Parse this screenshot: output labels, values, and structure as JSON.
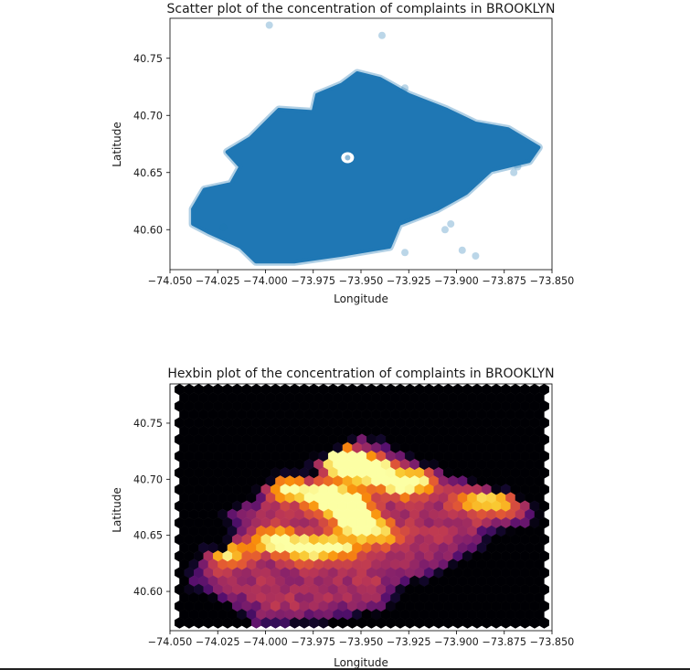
{
  "chart_data": [
    {
      "type": "scatter",
      "title": "Scatter plot of the concentration of complaints in BROOKLYN",
      "xlabel": "Longitude",
      "ylabel": "Latitude",
      "xlim": [
        -74.05,
        -73.85
      ],
      "ylim": [
        40.565,
        40.785
      ],
      "xticks": [
        -74.05,
        -74.025,
        -74.0,
        -73.975,
        -73.95,
        -73.925,
        -73.9,
        -73.875,
        -73.85
      ],
      "xtick_labels": [
        "−74.050",
        "−74.025",
        "−74.000",
        "−73.975",
        "−73.950",
        "−73.925",
        "−73.900",
        "−73.875",
        "−73.850"
      ],
      "yticks": [
        40.6,
        40.65,
        40.7,
        40.75
      ],
      "ytick_labels": [
        "40.60",
        "40.65",
        "40.70",
        "40.75"
      ],
      "grid": false,
      "point_color": "#1f77b4",
      "region": [
        [
          -74.038,
          40.618
        ],
        [
          -74.032,
          40.635
        ],
        [
          -74.018,
          40.64
        ],
        [
          -74.013,
          40.655
        ],
        [
          -74.02,
          40.668
        ],
        [
          -74.008,
          40.68
        ],
        [
          -73.993,
          40.705
        ],
        [
          -73.975,
          40.703
        ],
        [
          -73.973,
          40.718
        ],
        [
          -73.96,
          40.727
        ],
        [
          -73.952,
          40.737
        ],
        [
          -73.94,
          40.732
        ],
        [
          -73.925,
          40.718
        ],
        [
          -73.905,
          40.705
        ],
        [
          -73.89,
          40.693
        ],
        [
          -73.873,
          40.688
        ],
        [
          -73.857,
          40.672
        ],
        [
          -73.862,
          40.66
        ],
        [
          -73.882,
          40.652
        ],
        [
          -73.895,
          40.632
        ],
        [
          -73.91,
          40.618
        ],
        [
          -73.93,
          40.605
        ],
        [
          -73.935,
          40.585
        ],
        [
          -73.96,
          40.578
        ],
        [
          -73.985,
          40.572
        ],
        [
          -74.005,
          40.572
        ],
        [
          -74.013,
          40.585
        ],
        [
          -74.03,
          40.598
        ],
        [
          -74.038,
          40.605
        ]
      ],
      "hole": [
        -73.957,
        40.663
      ],
      "outliers": [
        [
          -73.998,
          40.779
        ],
        [
          -73.939,
          40.77
        ],
        [
          -73.927,
          40.724
        ],
        [
          -73.897,
          40.582
        ],
        [
          -73.89,
          40.577
        ],
        [
          -73.868,
          40.655
        ],
        [
          -73.87,
          40.65
        ],
        [
          -73.903,
          40.605
        ],
        [
          -73.927,
          40.58
        ],
        [
          -73.906,
          40.6
        ],
        [
          -74.022,
          40.602
        ]
      ]
    },
    {
      "type": "heatmap",
      "subtype": "hexbin",
      "title": "Hexbin plot of the concentration of complaints in BROOKLYN",
      "xlabel": "Longitude",
      "ylabel": "Latitude",
      "xlim": [
        -74.05,
        -73.85
      ],
      "ylim": [
        40.565,
        40.785
      ],
      "xticks": [
        -74.05,
        -74.025,
        -74.0,
        -73.975,
        -73.95,
        -73.925,
        -73.9,
        -73.875,
        -73.85
      ],
      "xtick_labels": [
        "−74.050",
        "−74.025",
        "−74.000",
        "−73.975",
        "−73.950",
        "−73.925",
        "−73.900",
        "−73.875",
        "−73.850"
      ],
      "yticks": [
        40.6,
        40.65,
        40.7,
        40.75
      ],
      "ytick_labels": [
        "40.60",
        "40.65",
        "40.70",
        "40.75"
      ],
      "grid": false,
      "colormap": "inferno",
      "bin_data_extent": [
        -74.045,
        -73.852,
        40.572,
        40.78
      ],
      "hot_spots": [
        {
          "lon": -73.958,
          "lat": 40.712,
          "intensity": 1.0
        },
        {
          "lon": -73.945,
          "lat": 40.708,
          "intensity": 1.0
        },
        {
          "lon": -73.958,
          "lat": 40.678,
          "intensity": 0.95
        },
        {
          "lon": -73.952,
          "lat": 40.662,
          "intensity": 0.85
        },
        {
          "lon": -73.97,
          "lat": 40.685,
          "intensity": 0.75
        },
        {
          "lon": -73.988,
          "lat": 40.692,
          "intensity": 0.6
        },
        {
          "lon": -73.995,
          "lat": 40.645,
          "intensity": 0.65
        },
        {
          "lon": -73.978,
          "lat": 40.638,
          "intensity": 0.72
        },
        {
          "lon": -74.02,
          "lat": 40.635,
          "intensity": 0.6
        },
        {
          "lon": -73.93,
          "lat": 40.695,
          "intensity": 0.6
        },
        {
          "lon": -73.92,
          "lat": 40.7,
          "intensity": 0.5
        },
        {
          "lon": -73.89,
          "lat": 40.68,
          "intensity": 0.45
        },
        {
          "lon": -73.875,
          "lat": 40.68,
          "intensity": 0.45
        },
        {
          "lon": -73.96,
          "lat": 40.64,
          "intensity": 0.5
        },
        {
          "lon": -73.94,
          "lat": 40.65,
          "intensity": 0.45
        },
        {
          "lon": -73.965,
          "lat": 40.727,
          "intensity": 0.55
        }
      ]
    }
  ]
}
